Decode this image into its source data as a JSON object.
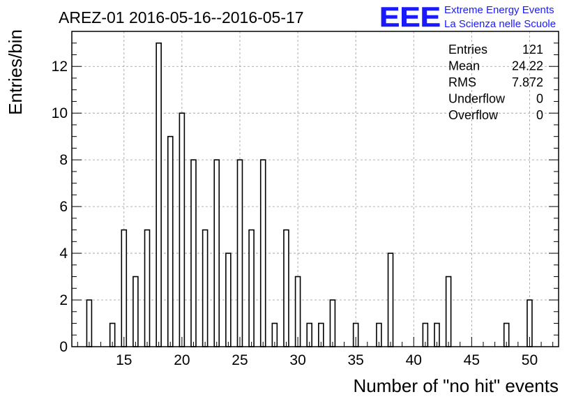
{
  "chart_data": {
    "type": "bar",
    "title": "AREZ-01 2016-05-16--2016-05-17",
    "xlabel": "Number of \"no hit\" events",
    "ylabel": "Entries/bin",
    "xlim": [
      10.5,
      52.5
    ],
    "ylim": [
      0,
      13.5
    ],
    "x_ticks": [
      15,
      20,
      25,
      30,
      35,
      40,
      45,
      50
    ],
    "y_ticks": [
      0,
      2,
      4,
      6,
      8,
      10,
      12
    ],
    "grid": true,
    "x": [
      12,
      14,
      15,
      16,
      17,
      18,
      19,
      20,
      21,
      22,
      23,
      24,
      25,
      26,
      27,
      28,
      29,
      30,
      31,
      32,
      33,
      35,
      37,
      38,
      41,
      42,
      43,
      48,
      50
    ],
    "values": [
      2,
      1,
      5,
      3,
      5,
      13,
      9,
      10,
      8,
      5,
      8,
      4,
      8,
      5,
      8,
      1,
      5,
      3,
      1,
      1,
      2,
      1,
      1,
      4,
      1,
      1,
      3,
      1,
      2
    ]
  },
  "stats_box": [
    {
      "label": "Entries",
      "value": "121"
    },
    {
      "label": "Mean",
      "value": "24.22"
    },
    {
      "label": "RMS",
      "value": "7.872"
    },
    {
      "label": "Underflow",
      "value": "0"
    },
    {
      "label": "Overflow",
      "value": "0"
    }
  ],
  "logo": {
    "mark": "EEE",
    "line1": "Extreme Energy Events",
    "line2": "La Scienza nelle Scuole",
    "color": "#1a1aff"
  }
}
